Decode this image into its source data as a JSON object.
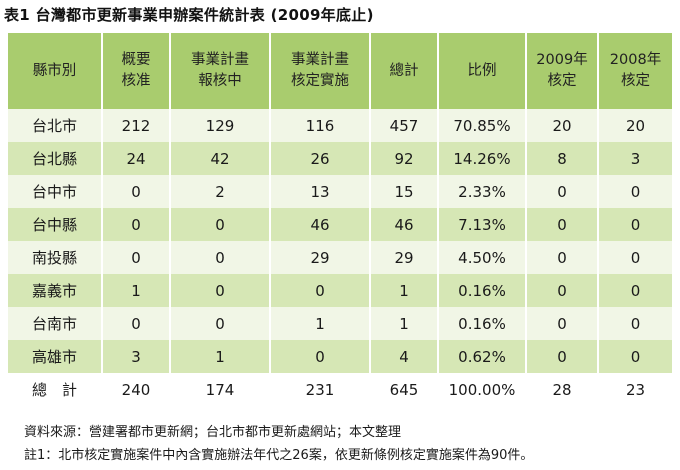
{
  "title": "表1 台灣都市更新事業申辦案件統計表 (2009年底止)",
  "headers": [
    [
      "縣市別"
    ],
    [
      "概要",
      "核准"
    ],
    [
      "事業計畫",
      "報核中"
    ],
    [
      "事業計畫",
      "核定實施"
    ],
    [
      "總計"
    ],
    [
      "比例"
    ],
    [
      "2009年",
      "核定"
    ],
    [
      "2008年",
      "核定"
    ]
  ],
  "rows": [
    [
      "台北市",
      "212",
      "129",
      "116",
      "457",
      "70.85%",
      "20",
      "20"
    ],
    [
      "台北縣",
      "24",
      "42",
      "26",
      "92",
      "14.26%",
      "8",
      "3"
    ],
    [
      "台中市",
      "0",
      "2",
      "13",
      "15",
      "2.33%",
      "0",
      "0"
    ],
    [
      "台中縣",
      "0",
      "0",
      "46",
      "46",
      "7.13%",
      "0",
      "0"
    ],
    [
      "南投縣",
      "0",
      "0",
      "29",
      "29",
      "4.50%",
      "0",
      "0"
    ],
    [
      "嘉義市",
      "1",
      "0",
      "0",
      "1",
      "0.16%",
      "0",
      "0"
    ],
    [
      "台南市",
      "0",
      "0",
      "1",
      "1",
      "0.16%",
      "0",
      "0"
    ],
    [
      "高雄市",
      "3",
      "1",
      "0",
      "4",
      "0.62%",
      "0",
      "0"
    ]
  ],
  "total": [
    "總　計",
    "240",
    "174",
    "231",
    "645",
    "100.00%",
    "28",
    "23"
  ],
  "notes": {
    "source": "資料來源：營建署都市更新網；台北市都市更新處網站；本文整理",
    "note1": "註1：北市核定實施案件中內含實施辦法年代之26案，依更新條例核定實施案件為90件。"
  },
  "colors": {
    "header_bg": "#a9cc6e",
    "row_light": "#f1f6e6",
    "row_dark": "#d6e7b5"
  }
}
